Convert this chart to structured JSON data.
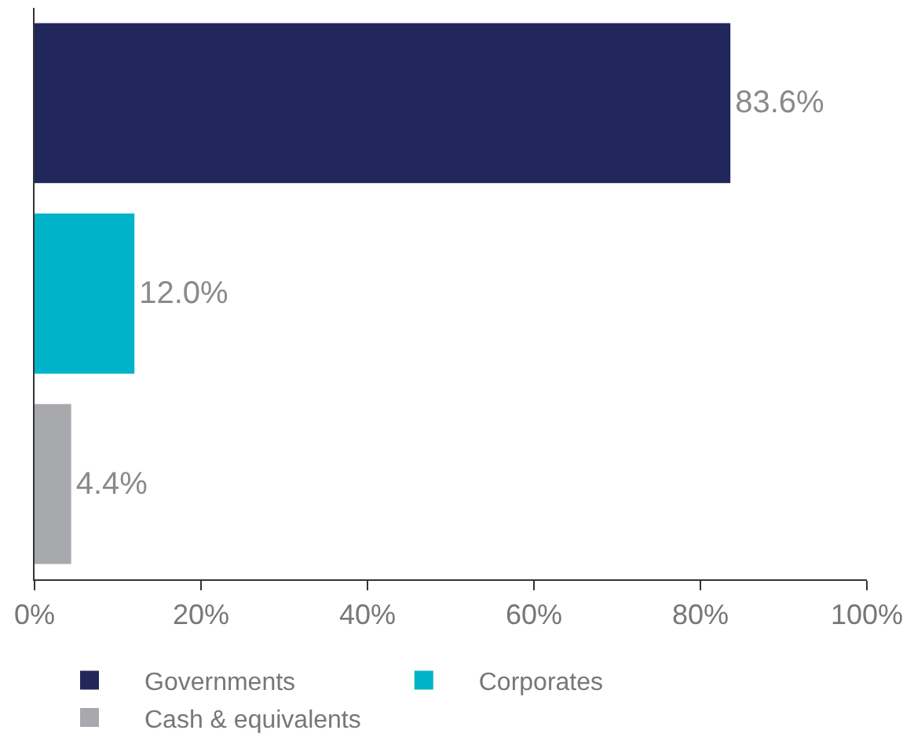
{
  "chart_data": {
    "type": "bar",
    "orientation": "horizontal",
    "categories": [
      null,
      null,
      null
    ],
    "series": [
      {
        "name": "Governments",
        "color": "#21275a",
        "values": [
          83.6,
          null,
          null
        ],
        "value_labels": [
          "83.6%",
          null,
          null
        ]
      },
      {
        "name": "Corporates",
        "color": "#00b3c8",
        "values": [
          null,
          12.0,
          null
        ],
        "value_labels": [
          null,
          "12.0%",
          null
        ]
      },
      {
        "name": "Cash & equivalents",
        "color": "#a7a9ac",
        "values": [
          null,
          null,
          4.4
        ],
        "value_labels": [
          null,
          null,
          "4.4%"
        ]
      }
    ],
    "xlim": [
      0,
      100
    ],
    "xticks": [
      {
        "value": 0,
        "label": "0%"
      },
      {
        "value": 20,
        "label": "20%"
      },
      {
        "value": 40,
        "label": "40%"
      },
      {
        "value": 60,
        "label": "60%"
      },
      {
        "value": 80,
        "label": "80%"
      },
      {
        "value": 100,
        "label": "100%"
      }
    ],
    "legend": "bottom"
  }
}
